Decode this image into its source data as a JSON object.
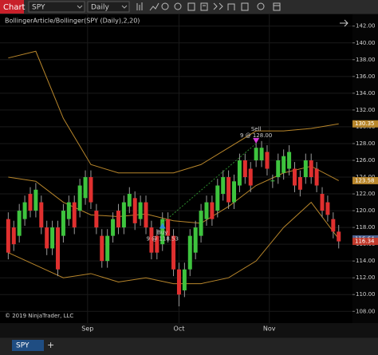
{
  "toolbar": {
    "window_label": "Chart",
    "instrument": "SPY",
    "interval": "Daily"
  },
  "chart_data": {
    "type": "candlestick",
    "title": "BollingerArticle/Bollinger(SPY (Daily),2,20)",
    "copyright": "© 2019 NinjaTrader, LLC",
    "up_color": "#3ec43e",
    "down_color": "#e0302f",
    "band_color": "#b8862b",
    "open": [
      119,
      118,
      117,
      119,
      122,
      120,
      121,
      118,
      115.5,
      118,
      117,
      119,
      121,
      120,
      121.5,
      124,
      120,
      117,
      114,
      117,
      120,
      118,
      120.5,
      121.5,
      119,
      121,
      118,
      117,
      116,
      119,
      117,
      113,
      110.5,
      113,
      115,
      117,
      119,
      121,
      120,
      122,
      124,
      121,
      123,
      126,
      125,
      126,
      126,
      127,
      123.5,
      124,
      124.5,
      125,
      125,
      124,
      124,
      126,
      125,
      122,
      121,
      119,
      117.5
    ],
    "high": [
      119.8,
      118.8,
      120.8,
      121.8,
      122.8,
      123.3,
      121.8,
      118.8,
      118.8,
      118.8,
      120.8,
      121.8,
      121.8,
      123.8,
      124.8,
      124.8,
      120.8,
      117.8,
      117.8,
      119.8,
      120.8,
      121.8,
      122.8,
      122.3,
      121.8,
      121.8,
      118.8,
      117.8,
      119.8,
      119.8,
      117.8,
      113.8,
      113.8,
      117.8,
      118.8,
      120.8,
      121.8,
      121.8,
      123.8,
      124.8,
      124.8,
      124.3,
      126.8,
      126.8,
      125.8,
      128.3,
      128.3,
      127.8,
      124.3,
      126.8,
      127.3,
      127.8,
      125.8,
      124.8,
      126.8,
      126.8,
      125.8,
      122.8,
      121.8,
      119.8,
      118.3
    ],
    "low": [
      114.2,
      115.2,
      116.2,
      118.2,
      119.2,
      119.2,
      117.2,
      114.7,
      114.7,
      112.2,
      116.2,
      118.2,
      117.2,
      119.2,
      120.7,
      120.2,
      117.2,
      113.2,
      113.2,
      116.2,
      117.2,
      117.2,
      119.7,
      117.7,
      118.2,
      117.2,
      114.2,
      114.2,
      115.2,
      116.2,
      112.2,
      108.6,
      109.7,
      112.2,
      114.2,
      116.2,
      118.2,
      118.2,
      119.2,
      121.2,
      120.2,
      120.2,
      122.2,
      123.2,
      122.2,
      125.2,
      125.2,
      124.2,
      122.7,
      123.2,
      123.7,
      124.2,
      122.2,
      121.7,
      123.2,
      123.2,
      122.2,
      119.2,
      118.7,
      116.7,
      115.5
    ],
    "close": [
      115,
      116,
      120,
      121,
      120,
      122.5,
      118,
      115.5,
      118,
      113,
      120,
      121,
      118,
      123,
      124,
      121,
      118,
      114,
      117,
      119,
      118,
      121,
      122,
      118.5,
      121,
      118,
      115,
      115,
      119,
      117,
      113,
      110,
      113,
      117,
      118,
      120,
      121,
      119,
      123,
      124,
      121,
      123.5,
      126,
      124,
      123,
      127.5,
      127.5,
      125,
      123.6,
      126,
      126.5,
      127,
      123,
      122.5,
      126,
      124,
      123,
      120,
      119.5,
      117.5,
      116.34
    ],
    "band_x": [
      0,
      5,
      10,
      15,
      20,
      25,
      30,
      35,
      40,
      45,
      50,
      55,
      60
    ],
    "bands": [
      {
        "values": [
          138.2,
          139,
          131,
          125.5,
          124.5,
          124.5,
          124.5,
          125.5,
          127.5,
          129.5,
          129.5,
          129.8,
          130.35
        ]
      },
      {
        "values": [
          124,
          123.5,
          121,
          119.5,
          119.3,
          119.6,
          118.8,
          118.5,
          120.5,
          123,
          124.5,
          125.3,
          123.58
        ]
      },
      {
        "values": [
          115,
          113.5,
          112,
          112.5,
          111.5,
          112,
          111.3,
          111.3,
          112,
          114,
          118,
          121,
          116.64
        ]
      }
    ],
    "xlim": [
      -1.5,
      62.5
    ],
    "ylim": [
      106.6,
      143.4
    ],
    "xticks": [
      {
        "value": 14.4,
        "label": "Sep"
      },
      {
        "value": 31,
        "label": "Oct"
      },
      {
        "value": 47.4,
        "label": "Nov"
      }
    ],
    "yticks": [
      {
        "value": 108,
        "label": "108.00"
      },
      {
        "value": 110,
        "label": "110.00"
      },
      {
        "value": 112,
        "label": "112.00"
      },
      {
        "value": 114,
        "label": "114.00"
      },
      {
        "value": 116,
        "label": "116.00"
      },
      {
        "value": 118,
        "label": "118.00"
      },
      {
        "value": 120,
        "label": "120.00"
      },
      {
        "value": 122,
        "label": "122.00"
      },
      {
        "value": 124,
        "label": "124.00"
      },
      {
        "value": 126,
        "label": "126.00"
      },
      {
        "value": 128,
        "label": "128.00"
      },
      {
        "value": 130,
        "label": "130.00"
      },
      {
        "value": 132,
        "label": "132.00"
      },
      {
        "value": 134,
        "label": "134.00"
      },
      {
        "value": 136,
        "label": "136.00"
      },
      {
        "value": 138,
        "label": "138.00"
      },
      {
        "value": 140,
        "label": "140.00"
      },
      {
        "value": 142,
        "label": "142.00"
      }
    ],
    "price_markers": [
      {
        "value": 130.35,
        "color": "#b8862b"
      },
      {
        "value": 123.58,
        "color": "#b8862b"
      },
      {
        "value": 116.64,
        "color": "#4a5f8f"
      },
      {
        "value": 116.34,
        "color": "#c0392b"
      }
    ],
    "trades": [
      {
        "label": "Buy",
        "text": "9 @ 118.53",
        "x": 28,
        "price": 118.53,
        "color": "#2f8fd8"
      },
      {
        "label": "Sell",
        "text": "9 @ 128.00",
        "x": 45,
        "price": 128,
        "color": "#d63bd6"
      }
    ]
  },
  "tabs": {
    "active": "SPY",
    "add": "+"
  }
}
